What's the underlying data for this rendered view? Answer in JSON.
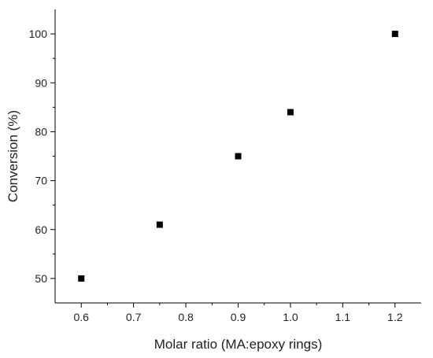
{
  "chart_data": {
    "type": "scatter",
    "title": "",
    "xlabel": "Molar ratio (MA:epoxy rings)",
    "ylabel": "Conversion (%)",
    "xlim": [
      0.55,
      1.25
    ],
    "ylim": [
      45,
      105
    ],
    "xticks": [
      "0.6",
      "0.7",
      "0.8",
      "0.9",
      "1.0",
      "1.1",
      "1.2"
    ],
    "yticks": [
      "50",
      "60",
      "70",
      "80",
      "90",
      "100"
    ],
    "grid": false,
    "legend": "none",
    "marker": "square",
    "marker_color": "#000000",
    "series": [
      {
        "x": [
          0.6,
          0.75,
          0.9,
          1.0,
          1.2
        ],
        "y": [
          50,
          61,
          75,
          84,
          100
        ]
      }
    ]
  }
}
